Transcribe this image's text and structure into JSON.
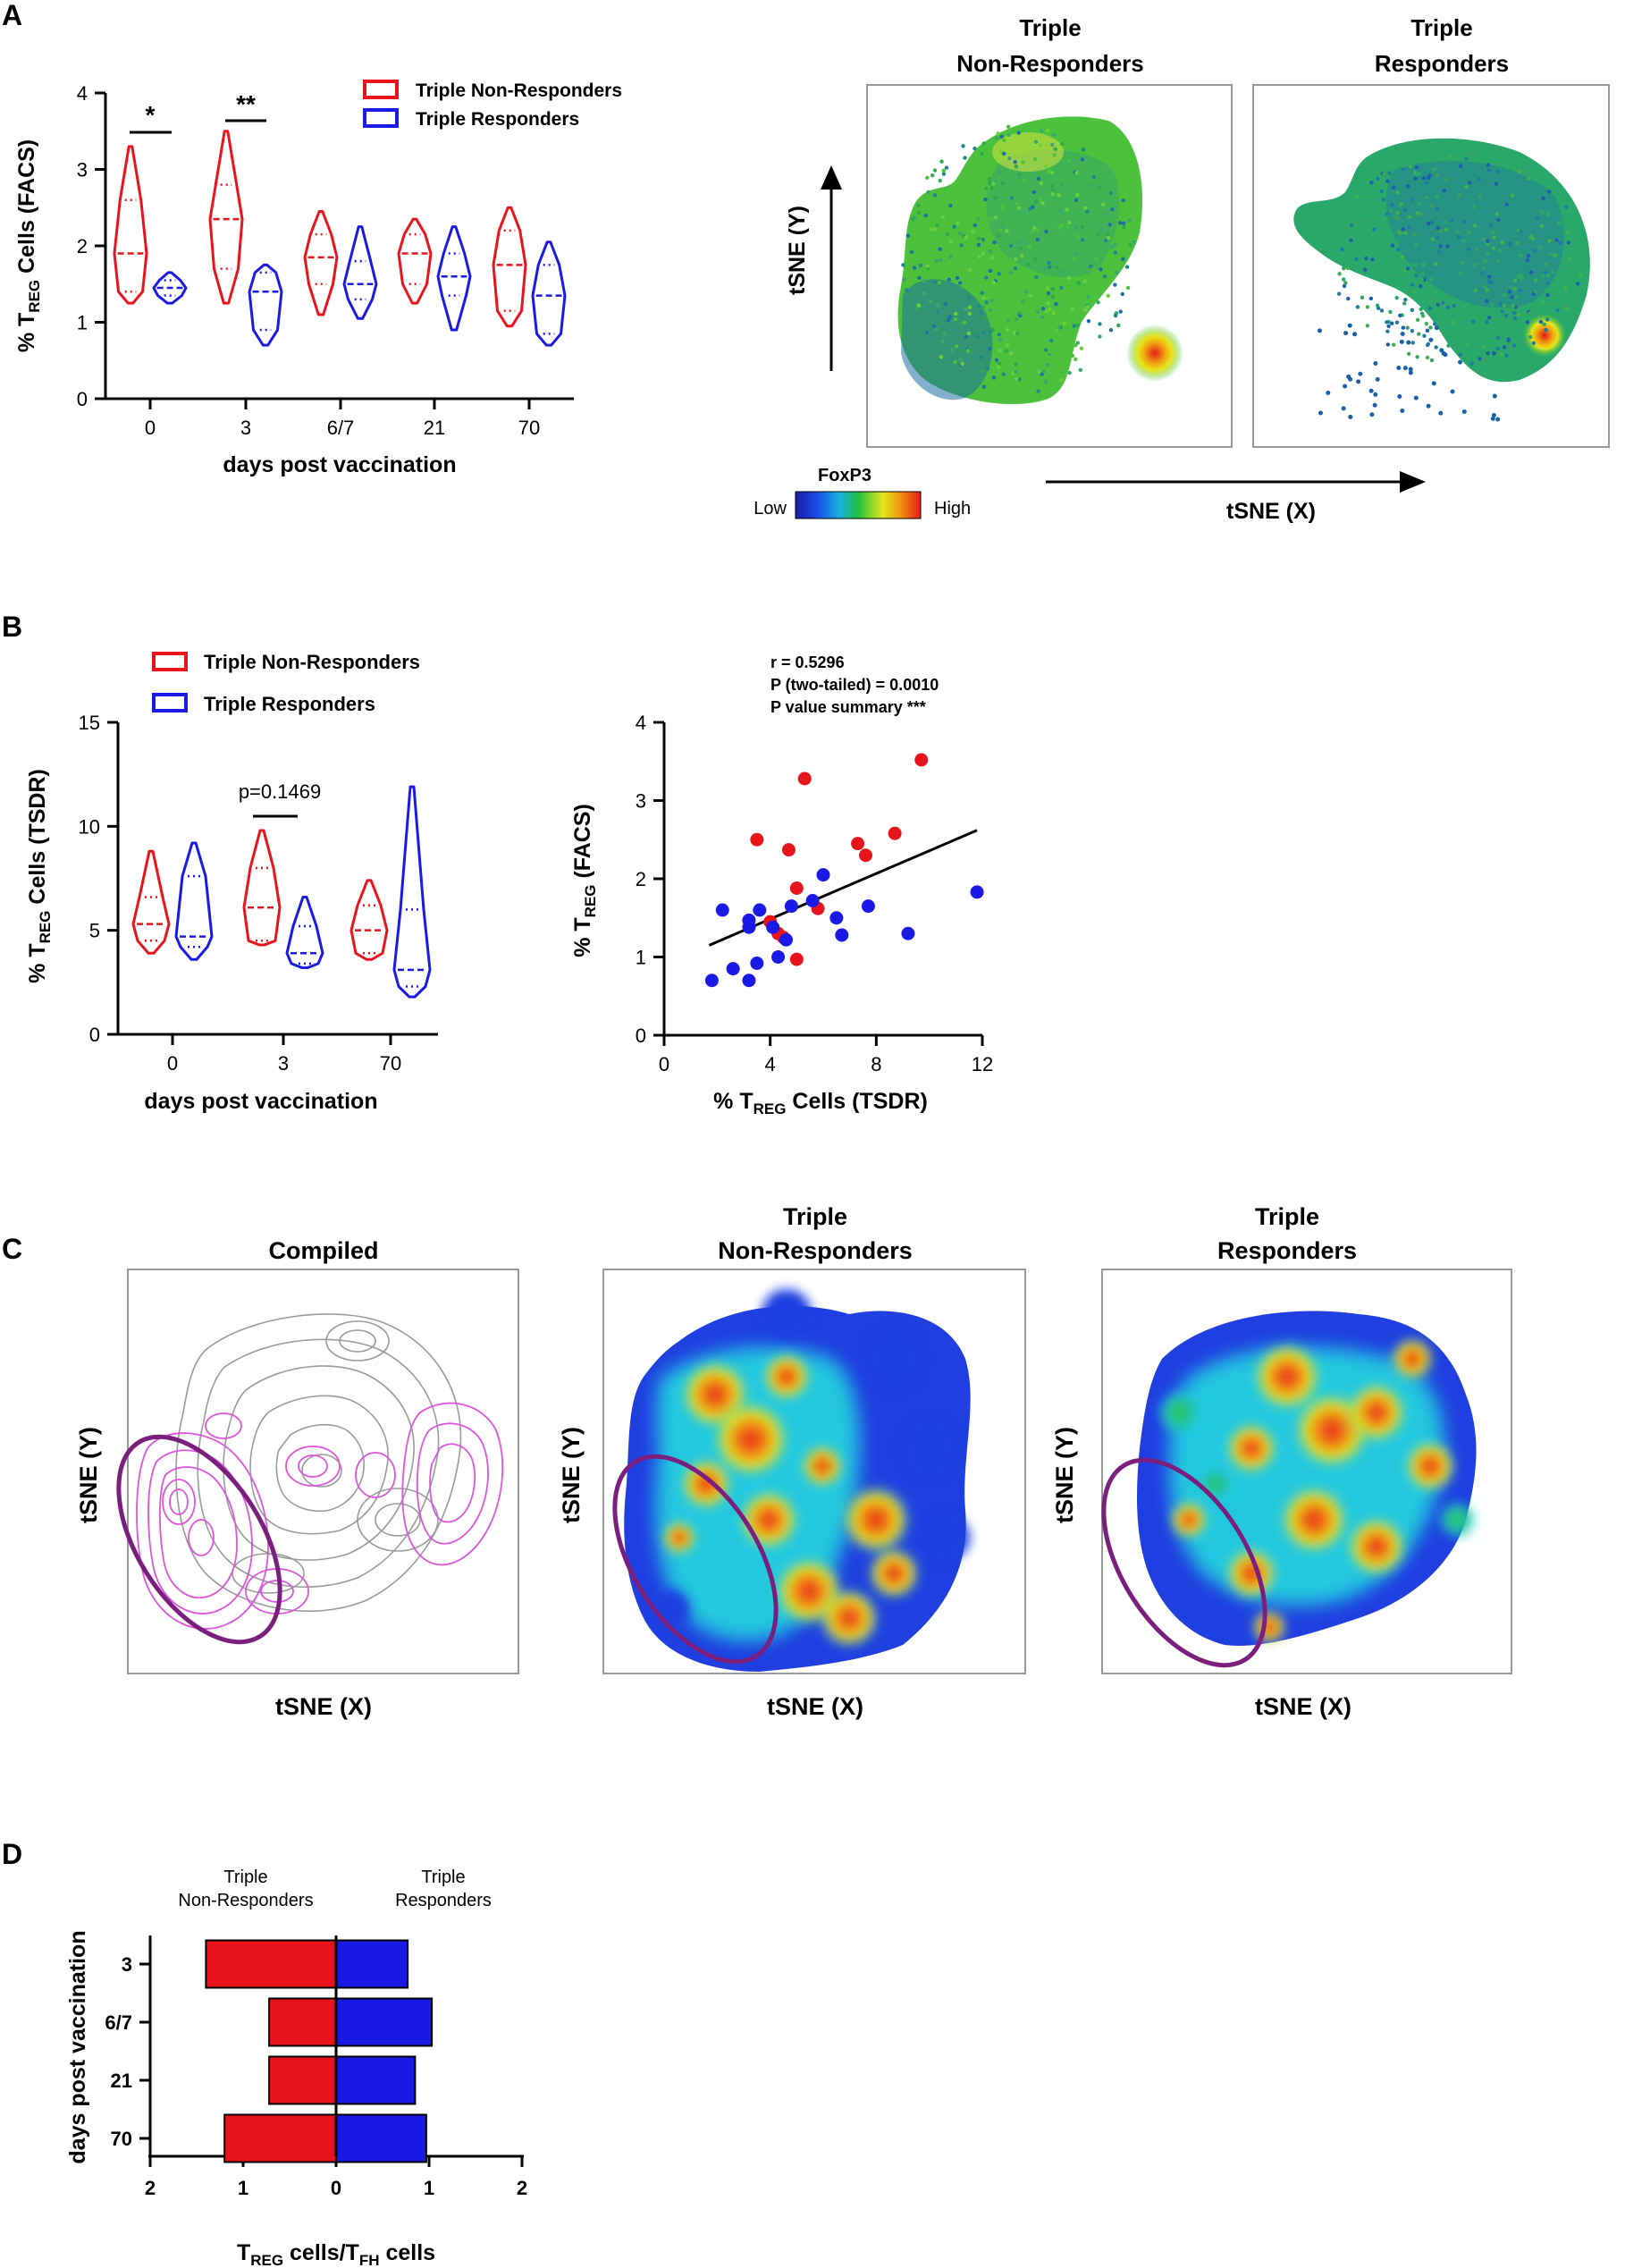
{
  "colors": {
    "nonresp": "#e8141c",
    "resp": "#1a1ae6",
    "ellipse": "#7b1f7f",
    "contour_grey": "#9a9a9a",
    "contour_pink": "#dd55dd"
  },
  "panels": {
    "A": {
      "letter": "A",
      "legend": {
        "nonresp": "Triple Non-Responders",
        "resp": "Triple Responders"
      },
      "violin": {
        "ylabel_pre": "% T",
        "ylabel_sub": "REG",
        "ylabel_post": " Cells (FACS)",
        "xlabel": "days post vaccination",
        "sig": [
          "*",
          "**"
        ]
      },
      "tsne": {
        "title_nonresp_l1": "Triple",
        "title_nonresp_l2": "Non-Responders",
        "title_resp_l1": "Triple",
        "title_resp_l2": "Responders",
        "xaxis": "tSNE (X)",
        "yaxis": "tSNE (Y)",
        "colorbar_title": "FoxP3",
        "colorbar_low": "Low",
        "colorbar_high": "High"
      }
    },
    "B": {
      "letter": "B",
      "legend": {
        "nonresp": "Triple Non-Responders",
        "resp": "Triple Responders"
      },
      "violin": {
        "ylabel_pre": "% T",
        "ylabel_sub": "REG",
        "ylabel_post": " Cells (TSDR)",
        "xlabel": "days post vaccination",
        "pval": "p=0.1469"
      },
      "scatter": {
        "stat1": "r = 0.5296",
        "stat2": "P (two-tailed) = 0.0010",
        "stat3": "P value summary ***",
        "ylabel_pre": "% T",
        "ylabel_sub": "REG",
        "ylabel_post": " (FACS)",
        "xlabel_pre": "% T",
        "xlabel_sub": "REG",
        "xlabel_post": " Cells (TSDR)"
      }
    },
    "C": {
      "letter": "C",
      "title_compiled": "Compiled",
      "title_nonresp_l1": "Triple",
      "title_nonresp_l2": "Non-Responders",
      "title_resp_l1": "Triple",
      "title_resp_l2": "Responders",
      "xaxis": "tSNE (X)",
      "yaxis": "tSNE (Y)"
    },
    "D": {
      "letter": "D",
      "header_nonresp_l1": "Triple",
      "header_nonresp_l2": "Non-Responders",
      "header_resp_l1": "Triple",
      "header_resp_l2": "Responders",
      "ylabel": "days post vaccination",
      "xlabel_pre": "T",
      "xlabel_sub1": "REG",
      "xlabel_mid": " cells/T",
      "xlabel_sub2": "FH",
      "xlabel_post": " cells"
    }
  },
  "chart_data": [
    {
      "id": "A_violin",
      "type": "violin",
      "title": "",
      "xlabel": "days post vaccination",
      "ylabel": "% TREG Cells (FACS)",
      "categories": [
        "0",
        "3",
        "6/7",
        "21",
        "70"
      ],
      "ylim": [
        0,
        4
      ],
      "yticks": [
        0,
        1,
        2,
        3,
        4
      ],
      "series": [
        {
          "name": "Triple Non-Responders",
          "min": [
            1.25,
            1.25,
            1.1,
            1.25,
            0.95
          ],
          "max": [
            3.3,
            3.5,
            2.45,
            2.35,
            2.5
          ],
          "median": [
            1.9,
            2.35,
            1.85,
            1.9,
            1.75
          ],
          "q1": [
            1.4,
            1.7,
            1.5,
            1.5,
            1.15
          ],
          "q3": [
            2.6,
            2.8,
            2.15,
            2.15,
            2.2
          ]
        },
        {
          "name": "Triple Responders",
          "min": [
            1.25,
            0.7,
            1.05,
            0.9,
            0.7
          ],
          "max": [
            1.65,
            1.75,
            2.25,
            2.25,
            2.05
          ],
          "median": [
            1.45,
            1.4,
            1.5,
            1.6,
            1.35
          ],
          "q1": [
            1.35,
            0.9,
            1.3,
            1.35,
            0.85
          ],
          "q3": [
            1.55,
            1.65,
            1.8,
            1.9,
            1.75
          ]
        }
      ],
      "significance": [
        {
          "category": "0",
          "label": "*"
        },
        {
          "category": "3",
          "label": "**"
        }
      ]
    },
    {
      "id": "B_violin",
      "type": "violin",
      "title": "",
      "xlabel": "days post vaccination",
      "ylabel": "% TREG Cells (TSDR)",
      "categories": [
        "0",
        "3",
        "70"
      ],
      "ylim": [
        0,
        15
      ],
      "yticks": [
        0,
        5,
        10,
        15
      ],
      "series": [
        {
          "name": "Triple Non-Responders",
          "min": [
            3.9,
            4.3,
            3.6
          ],
          "max": [
            8.8,
            9.8,
            7.4
          ],
          "median": [
            5.3,
            6.1,
            5.0
          ],
          "q1": [
            4.5,
            4.5,
            3.9
          ],
          "q3": [
            6.6,
            8.0,
            6.2
          ]
        },
        {
          "name": "Triple Responders",
          "min": [
            3.6,
            3.2,
            1.8
          ],
          "max": [
            9.2,
            6.6,
            11.9
          ],
          "median": [
            4.7,
            3.9,
            3.1
          ],
          "q1": [
            4.2,
            3.4,
            2.3
          ],
          "q3": [
            7.6,
            5.2,
            6.0
          ]
        }
      ],
      "annotation": {
        "category": "3",
        "label": "p=0.1469"
      }
    },
    {
      "id": "B_scatter",
      "type": "scatter",
      "xlabel": "% TREG Cells (TSDR)",
      "ylabel": "% TREG (FACS)",
      "xlim": [
        0,
        12
      ],
      "ylim": [
        0,
        4
      ],
      "xticks": [
        0,
        4,
        8,
        12
      ],
      "yticks": [
        0,
        1,
        2,
        3,
        4
      ],
      "series": [
        {
          "name": "Triple Non-Responders",
          "points": [
            [
              3.5,
              2.5
            ],
            [
              5.3,
              3.28
            ],
            [
              9.7,
              3.52
            ],
            [
              4.7,
              2.37
            ],
            [
              7.3,
              2.45
            ],
            [
              8.7,
              2.58
            ],
            [
              7.6,
              2.3
            ],
            [
              5.0,
              1.88
            ],
            [
              4.0,
              1.45
            ],
            [
              4.3,
              1.3
            ],
            [
              4.5,
              1.25
            ],
            [
              5.8,
              1.62
            ],
            [
              5.0,
              0.97
            ]
          ]
        },
        {
          "name": "Triple Responders",
          "points": [
            [
              1.8,
              0.7
            ],
            [
              2.6,
              0.85
            ],
            [
              3.2,
              0.7
            ],
            [
              3.5,
              0.92
            ],
            [
              3.2,
              1.38
            ],
            [
              3.2,
              1.47
            ],
            [
              2.2,
              1.6
            ],
            [
              3.6,
              1.6
            ],
            [
              4.1,
              1.38
            ],
            [
              4.3,
              1.0
            ],
            [
              4.6,
              1.22
            ],
            [
              4.8,
              1.65
            ],
            [
              5.6,
              1.72
            ],
            [
              6.0,
              2.05
            ],
            [
              6.5,
              1.5
            ],
            [
              6.7,
              1.28
            ],
            [
              7.7,
              1.65
            ],
            [
              9.2,
              1.3
            ],
            [
              11.8,
              1.83
            ]
          ]
        }
      ],
      "regression": {
        "x1": 1.7,
        "y1": 1.15,
        "x2": 11.8,
        "y2": 2.62
      },
      "stats": {
        "r": 0.5296,
        "p_two_tailed": 0.001,
        "summary": "***"
      }
    },
    {
      "id": "D_bar",
      "type": "bar",
      "orientation": "horizontal",
      "categories": [
        "3",
        "6/7",
        "21",
        "70"
      ],
      "xlabel": "TREG cells/TFH cells",
      "ylabel": "days post vaccination",
      "xticks": [
        2,
        1,
        0,
        1,
        2
      ],
      "xlim": [
        -2,
        2
      ],
      "series": [
        {
          "name": "Triple Non-Responders",
          "values": [
            1.4,
            0.72,
            0.72,
            1.2
          ]
        },
        {
          "name": "Triple Responders",
          "values": [
            0.77,
            1.03,
            0.85,
            0.97
          ]
        }
      ]
    }
  ]
}
